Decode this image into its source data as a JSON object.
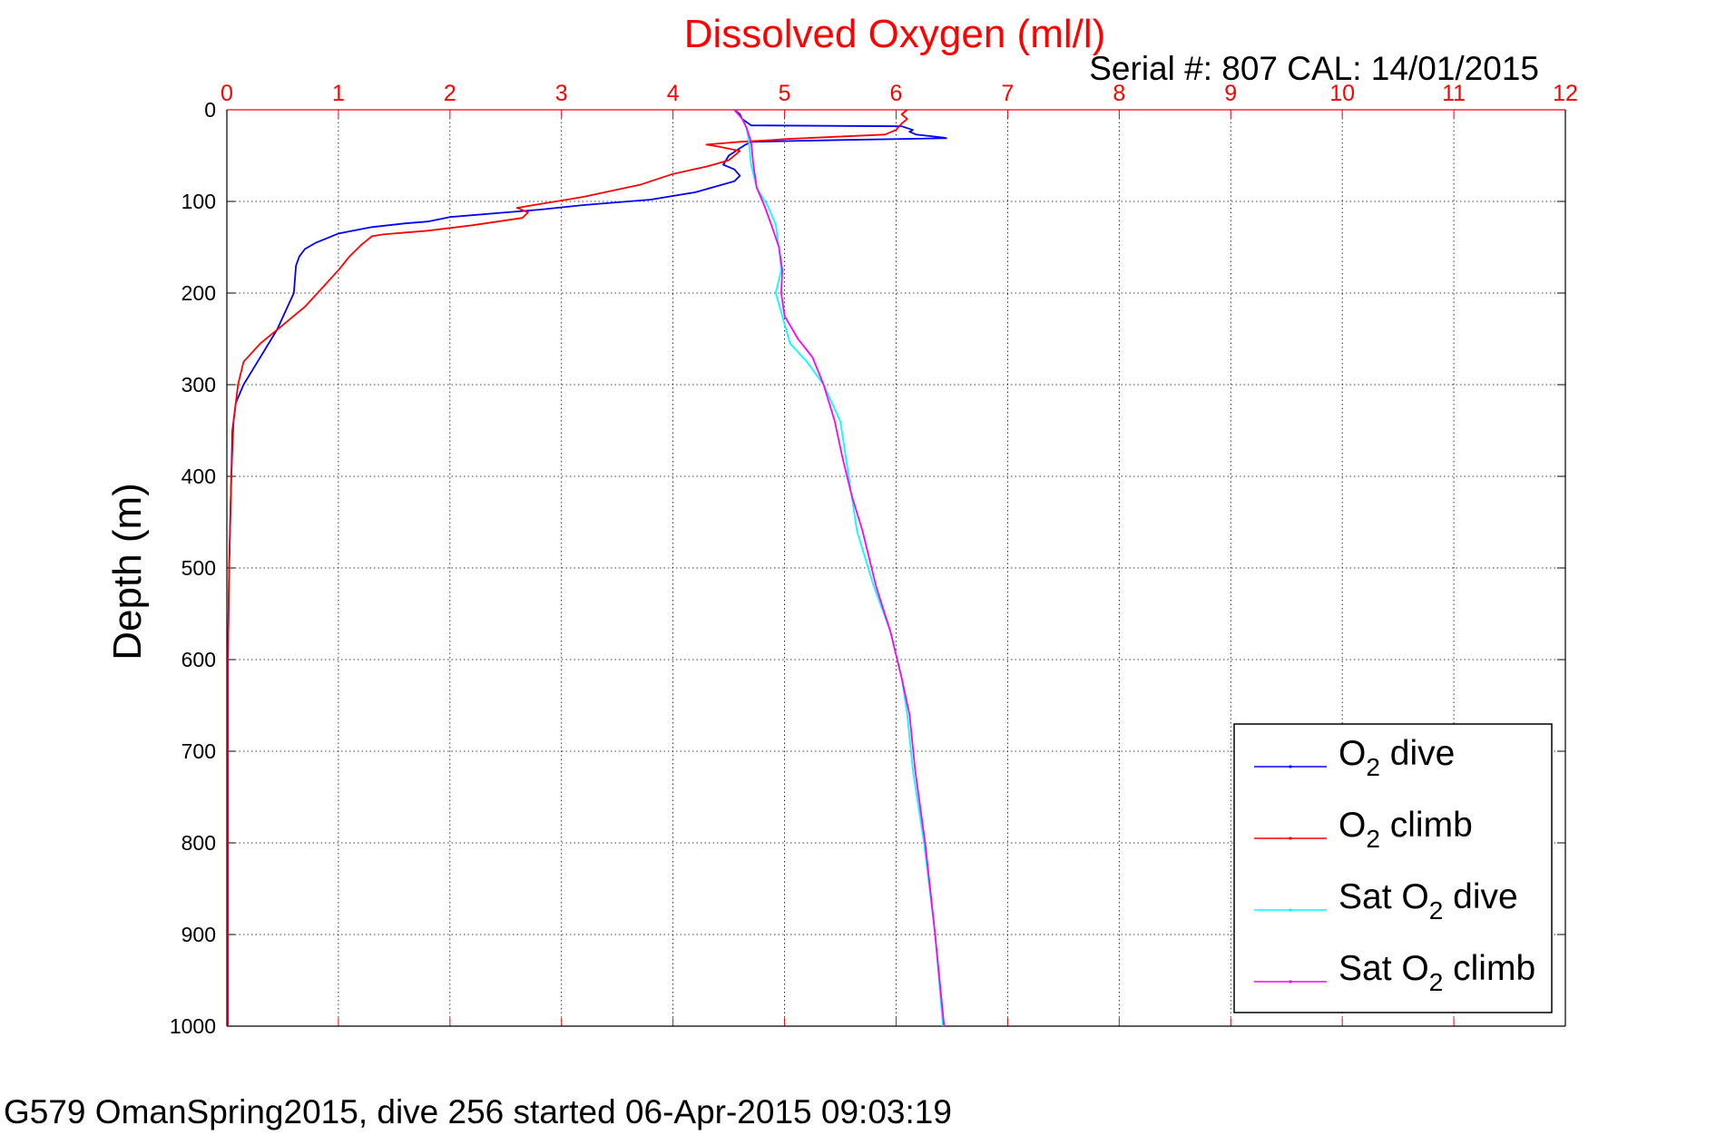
{
  "chart_data": {
    "type": "line",
    "title": "Dissolved Oxygen (ml/l)",
    "subtitle": "Serial #: 807  CAL: 14/01/2015",
    "xlabel": "Dissolved Oxygen (ml/l)",
    "ylabel": "Depth (m)",
    "xlim": [
      0,
      12
    ],
    "ylim": [
      1000,
      0
    ],
    "x_ticks": [
      "0",
      "1",
      "2",
      "3",
      "4",
      "5",
      "6",
      "7",
      "8",
      "9",
      "10",
      "11",
      "12"
    ],
    "y_ticks": [
      "0",
      "100",
      "200",
      "300",
      "400",
      "500",
      "600",
      "700",
      "800",
      "900",
      "1000"
    ],
    "grid": true,
    "legend_position": "bottom-right",
    "colors": {
      "title": "#ff0000",
      "x_axis": "#ff0000",
      "y_axis": "#000000",
      "o2_dive": "#0000ff",
      "o2_climb": "#ff0000",
      "sat_o2_dive": "#00ffff",
      "sat_o2_climb": "#ff00ff"
    },
    "series": [
      {
        "name": "O2 dive",
        "legend_main": "O",
        "legend_sub": "2",
        "legend_rest": " dive",
        "color": "#0000ff",
        "points": [
          [
            4.55,
            0
          ],
          [
            4.6,
            5
          ],
          [
            4.62,
            10
          ],
          [
            4.7,
            17
          ],
          [
            6.05,
            18
          ],
          [
            6.1,
            20
          ],
          [
            6.15,
            22
          ],
          [
            6.12,
            24
          ],
          [
            6.18,
            27
          ],
          [
            6.4,
            30
          ],
          [
            6.45,
            31
          ],
          [
            5.5,
            33
          ],
          [
            4.7,
            35
          ],
          [
            4.65,
            38
          ],
          [
            4.6,
            42
          ],
          [
            4.5,
            50
          ],
          [
            4.45,
            60
          ],
          [
            4.55,
            65
          ],
          [
            4.6,
            72
          ],
          [
            4.55,
            78
          ],
          [
            4.2,
            90
          ],
          [
            3.8,
            98
          ],
          [
            3.2,
            104
          ],
          [
            2.8,
            109
          ],
          [
            2.5,
            112
          ],
          [
            2.0,
            117
          ],
          [
            1.8,
            122
          ],
          [
            1.6,
            124
          ],
          [
            1.3,
            128
          ],
          [
            1.0,
            135
          ],
          [
            0.9,
            140
          ],
          [
            0.8,
            145
          ],
          [
            0.7,
            152
          ],
          [
            0.65,
            160
          ],
          [
            0.62,
            170
          ],
          [
            0.6,
            200
          ],
          [
            0.45,
            240
          ],
          [
            0.25,
            280
          ],
          [
            0.15,
            300
          ],
          [
            0.08,
            320
          ],
          [
            0.05,
            350
          ],
          [
            0.04,
            400
          ],
          [
            0.02,
            500
          ],
          [
            0.01,
            600
          ],
          [
            0.01,
            800
          ],
          [
            0.01,
            1000
          ]
        ]
      },
      {
        "name": "O2 climb",
        "legend_main": "O",
        "legend_sub": "2",
        "legend_rest": " climb",
        "color": "#ff0000",
        "points": [
          [
            6.1,
            0
          ],
          [
            6.05,
            5
          ],
          [
            6.1,
            10
          ],
          [
            6.05,
            15
          ],
          [
            6.0,
            22
          ],
          [
            5.9,
            27
          ],
          [
            5.0,
            32
          ],
          [
            4.9,
            33
          ],
          [
            4.6,
            35
          ],
          [
            4.3,
            38
          ],
          [
            4.4,
            40
          ],
          [
            4.6,
            45
          ],
          [
            4.5,
            55
          ],
          [
            4.3,
            62
          ],
          [
            4.0,
            70
          ],
          [
            3.7,
            82
          ],
          [
            3.2,
            95
          ],
          [
            3.0,
            99
          ],
          [
            2.8,
            103
          ],
          [
            2.6,
            107
          ],
          [
            2.7,
            112
          ],
          [
            2.65,
            118
          ],
          [
            2.2,
            126
          ],
          [
            2.0,
            129
          ],
          [
            1.8,
            132
          ],
          [
            1.6,
            134
          ],
          [
            1.4,
            136
          ],
          [
            1.3,
            138
          ],
          [
            1.25,
            143
          ],
          [
            1.2,
            148
          ],
          [
            1.1,
            160
          ],
          [
            1.0,
            175
          ],
          [
            0.85,
            195
          ],
          [
            0.7,
            215
          ],
          [
            0.5,
            235
          ],
          [
            0.3,
            255
          ],
          [
            0.15,
            275
          ],
          [
            0.1,
            300
          ],
          [
            0.06,
            340
          ],
          [
            0.04,
            400
          ],
          [
            0.02,
            500
          ],
          [
            0.01,
            600
          ],
          [
            0.01,
            800
          ],
          [
            0.01,
            1000
          ]
        ]
      },
      {
        "name": "Sat O2 dive",
        "legend_main": "Sat O",
        "legend_sub": "2",
        "legend_rest": " dive",
        "color": "#00ffff",
        "points": [
          [
            4.55,
            0
          ],
          [
            4.62,
            10
          ],
          [
            4.66,
            20
          ],
          [
            4.68,
            35
          ],
          [
            4.7,
            60
          ],
          [
            4.75,
            85
          ],
          [
            4.85,
            105
          ],
          [
            4.92,
            125
          ],
          [
            4.95,
            150
          ],
          [
            4.97,
            175
          ],
          [
            4.92,
            200
          ],
          [
            4.98,
            225
          ],
          [
            5.05,
            255
          ],
          [
            5.2,
            275
          ],
          [
            5.35,
            300
          ],
          [
            5.5,
            340
          ],
          [
            5.55,
            380
          ],
          [
            5.6,
            420
          ],
          [
            5.65,
            460
          ],
          [
            5.8,
            520
          ],
          [
            5.95,
            570
          ],
          [
            6.05,
            620
          ],
          [
            6.1,
            660
          ],
          [
            6.15,
            720
          ],
          [
            6.25,
            800
          ],
          [
            6.35,
            900
          ],
          [
            6.42,
            1000
          ]
        ]
      },
      {
        "name": "Sat O2 climb",
        "legend_main": "Sat O",
        "legend_sub": "2",
        "legend_rest": " climb",
        "color": "#ff00ff",
        "points": [
          [
            4.55,
            0
          ],
          [
            4.62,
            10
          ],
          [
            4.66,
            20
          ],
          [
            4.7,
            35
          ],
          [
            4.72,
            60
          ],
          [
            4.75,
            85
          ],
          [
            4.82,
            105
          ],
          [
            4.88,
            125
          ],
          [
            4.95,
            150
          ],
          [
            4.98,
            175
          ],
          [
            4.97,
            200
          ],
          [
            5.0,
            225
          ],
          [
            5.12,
            250
          ],
          [
            5.25,
            270
          ],
          [
            5.35,
            300
          ],
          [
            5.45,
            340
          ],
          [
            5.52,
            380
          ],
          [
            5.6,
            420
          ],
          [
            5.7,
            460
          ],
          [
            5.82,
            520
          ],
          [
            5.95,
            570
          ],
          [
            6.05,
            620
          ],
          [
            6.12,
            660
          ],
          [
            6.17,
            720
          ],
          [
            6.26,
            800
          ],
          [
            6.35,
            900
          ],
          [
            6.43,
            1000
          ]
        ]
      }
    ]
  },
  "footer_text": "G579 OmanSpring2015, dive 256 started 06-Apr-2015 09:03:19"
}
